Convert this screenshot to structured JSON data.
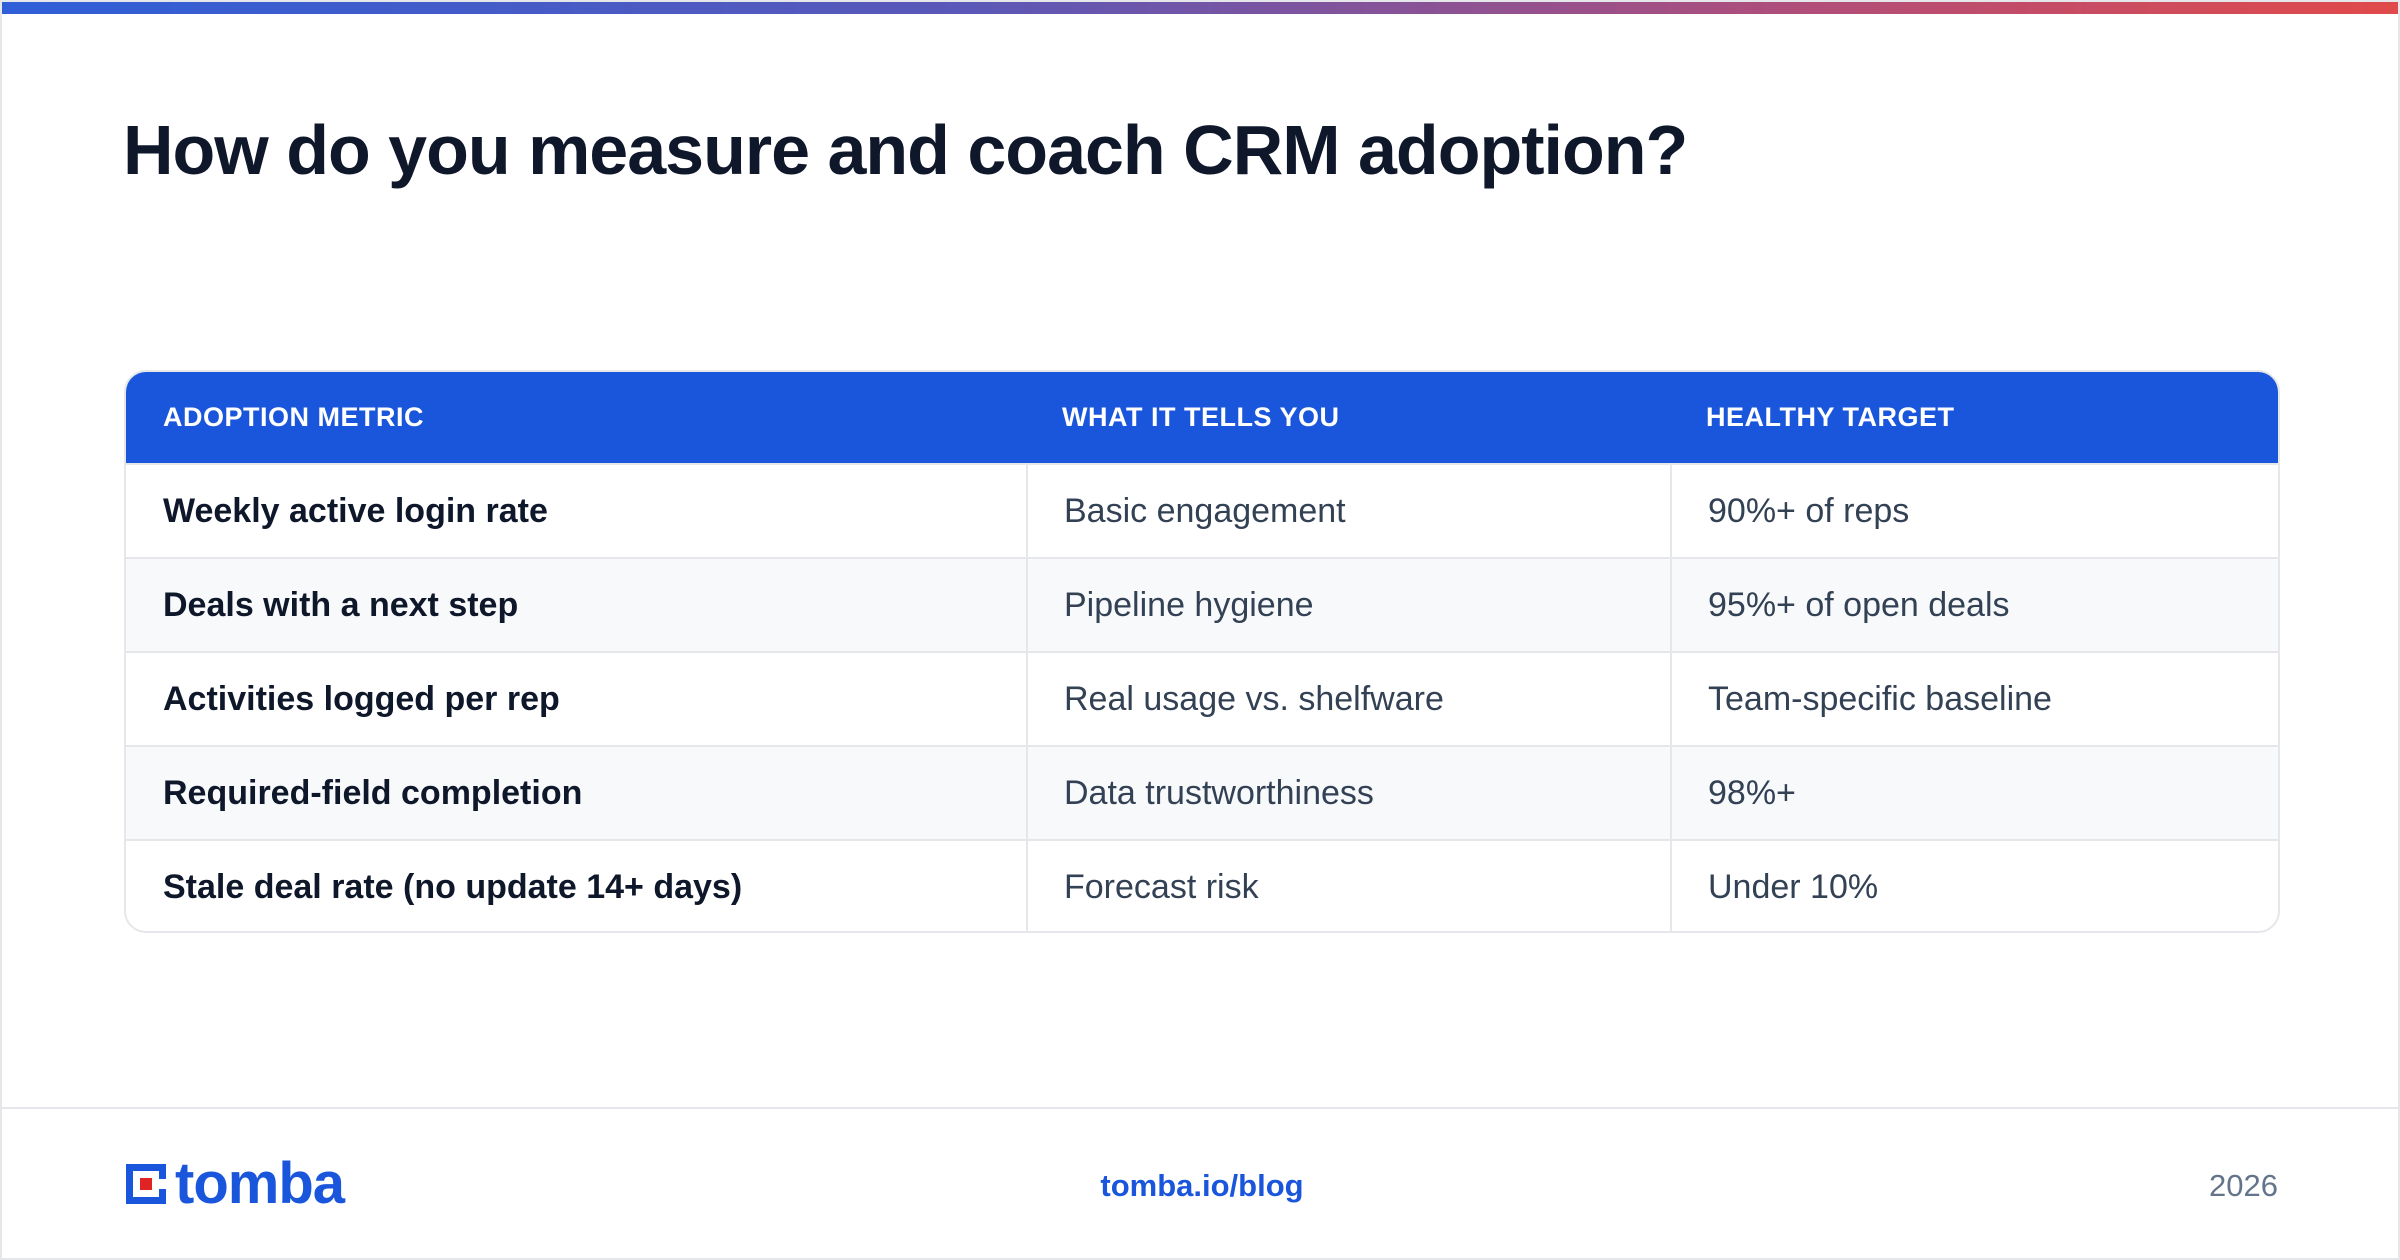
{
  "title": "How do you measure and coach CRM adoption?",
  "table": {
    "headers": [
      "ADOPTION METRIC",
      "WHAT IT TELLS YOU",
      "HEALTHY TARGET"
    ],
    "rows": [
      [
        "Weekly active login rate",
        "Basic engagement",
        "90%+ of reps"
      ],
      [
        "Deals with a next step",
        "Pipeline hygiene",
        "95%+ of open deals"
      ],
      [
        "Activities logged per rep",
        "Real usage vs. shelfware",
        "Team-specific baseline"
      ],
      [
        "Required-field completion",
        "Data trustworthiness",
        "98%+"
      ],
      [
        "Stale deal rate (no update 14+ days)",
        "Forecast risk",
        "Under 10%"
      ]
    ]
  },
  "footer": {
    "logo_text": "tomba",
    "link": "tomba.io/blog",
    "year": "2026"
  },
  "colors": {
    "accent": "#1a56db",
    "heading": "#0f172a",
    "body_text": "#334155",
    "logo_red": "#e02424"
  },
  "icons": {
    "logo_mark": "tomba-logo-icon"
  }
}
